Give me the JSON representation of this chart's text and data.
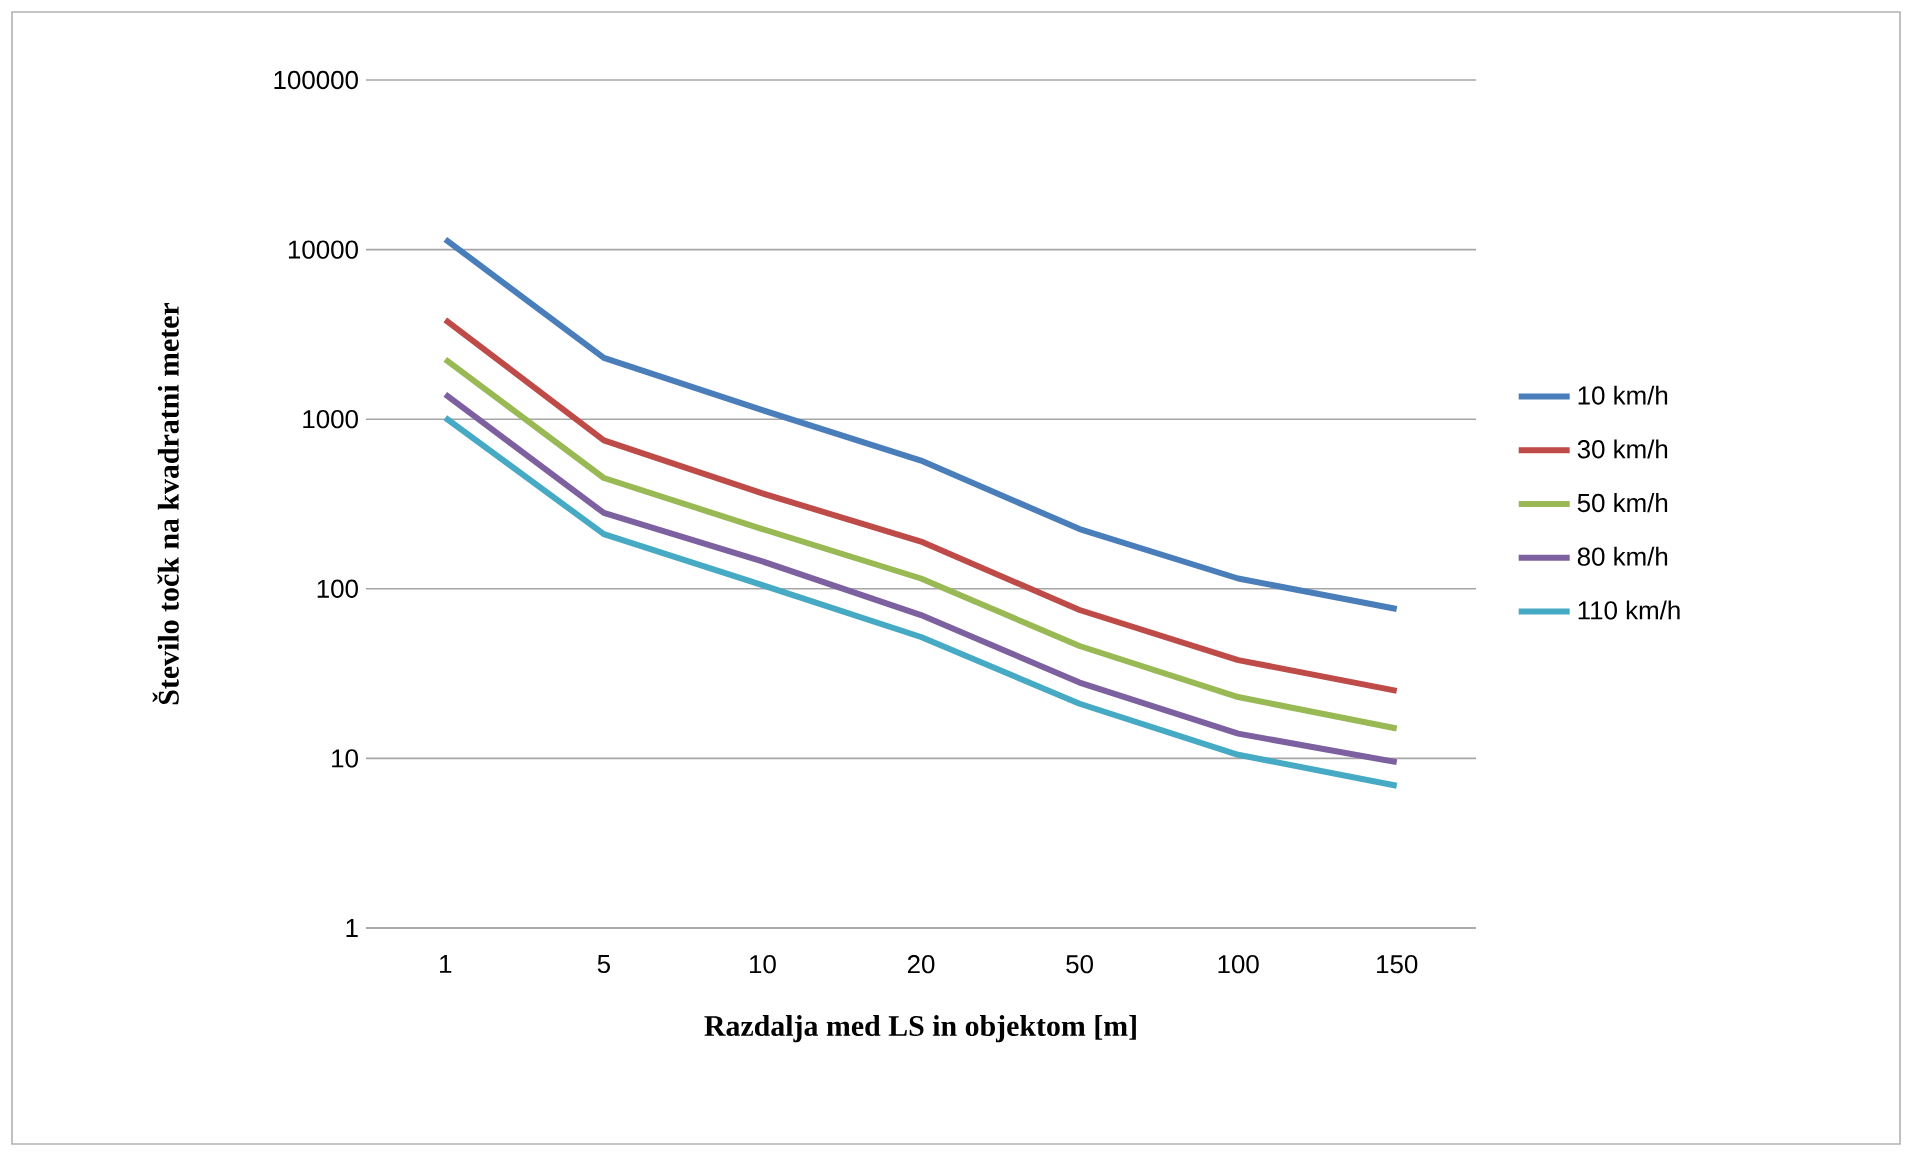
{
  "chart_data": {
    "type": "line",
    "xlabel": "Razdalja med LS in objektom [m]",
    "ylabel": "Število točk na kvadratni meter",
    "categories": [
      "1",
      "5",
      "10",
      "20",
      "50",
      "100",
      "150"
    ],
    "log": "y",
    "ylim": [
      1,
      100000
    ],
    "yticks": [
      1,
      10,
      100,
      1000,
      10000,
      100000
    ],
    "grid": "y",
    "legend": "right",
    "marker": "none",
    "line_style": "solid",
    "series": [
      {
        "name": "10 km/h",
        "color": "#4a7ebb",
        "values": [
          11500,
          2300,
          1130,
          570,
          225,
          115,
          76
        ]
      },
      {
        "name": "30 km/h",
        "color": "#be4b48",
        "values": [
          3850,
          750,
          365,
          190,
          75,
          38,
          25
        ]
      },
      {
        "name": "50 km/h",
        "color": "#98b954",
        "values": [
          2250,
          450,
          225,
          115,
          46,
          23,
          15
        ]
      },
      {
        "name": "80 km/h",
        "color": "#7d60a0",
        "values": [
          1400,
          280,
          145,
          70,
          28,
          14,
          9.5
        ]
      },
      {
        "name": "110 km/h",
        "color": "#46aac5",
        "values": [
          1020,
          210,
          105,
          52,
          21,
          10.5,
          6.9
        ]
      }
    ]
  }
}
